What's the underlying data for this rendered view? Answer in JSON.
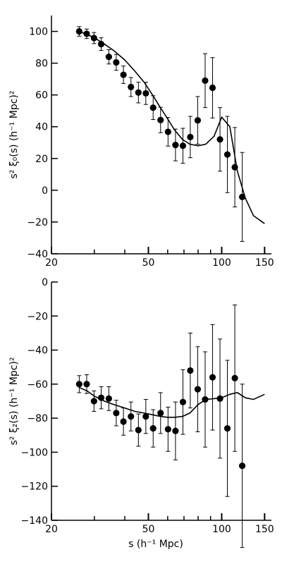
{
  "chart_data": [
    {
      "type": "scatter",
      "title": "",
      "xlabel": "",
      "ylabel": "s² ξ₀(s) (h⁻¹ Mpc)²",
      "xscale": "log",
      "xlim": [
        20,
        160
      ],
      "ylim": [
        -40,
        110
      ],
      "xticks": [
        20,
        50,
        100,
        150
      ],
      "xminorticks": [
        30,
        40,
        60,
        70,
        80,
        90
      ],
      "yticks": [
        -40,
        -20,
        0,
        20,
        40,
        60,
        80,
        100
      ],
      "grid": false,
      "series": [
        {
          "kind": "points-with-errorbars",
          "x": [
            26,
            27.9,
            29.9,
            32,
            34.4,
            36.9,
            39.5,
            42.4,
            45.5,
            48.8,
            52.3,
            56.1,
            60.2,
            64.6,
            69.3,
            74.3,
            79.7,
            85.5,
            91.7,
            98.4,
            105.5,
            113.2,
            121.4,
            130.2,
            139.7,
            150
          ],
          "y": [
            100,
            98.5,
            95.8,
            92,
            84,
            80.5,
            72.7,
            65,
            61.5,
            61,
            52,
            44.2,
            36.8,
            28.5,
            28,
            33.5,
            44,
            69,
            64.5,
            32,
            22.5,
            14.5,
            -4.2,
            null,
            null,
            null
          ],
          "yerr": [
            3,
            3,
            3.5,
            4,
            4.5,
            5,
            5.5,
            6,
            6.5,
            7,
            7.5,
            8,
            9,
            10,
            11,
            13,
            15,
            17,
            19,
            20,
            24,
            25,
            28,
            0,
            0,
            0
          ]
        },
        {
          "kind": "line",
          "x": [
            26,
            28,
            30,
            33,
            36,
            40,
            44,
            48,
            52,
            56,
            60,
            64,
            69,
            74,
            80,
            86,
            93,
            100,
            108,
            116,
            125,
            135,
            150
          ],
          "y": [
            100,
            98,
            96,
            92,
            88,
            82,
            75,
            68,
            60,
            52,
            45,
            38,
            32,
            29,
            28,
            29,
            34,
            46,
            40,
            12,
            -5,
            -16,
            -21
          ]
        }
      ]
    },
    {
      "type": "scatter",
      "title": "",
      "xlabel": "s (h⁻¹ Mpc)",
      "ylabel": "s² ξ₂(s) (h⁻¹ Mpc)²",
      "xscale": "log",
      "xlim": [
        20,
        160
      ],
      "ylim": [
        -140,
        0
      ],
      "xticks": [
        20,
        50,
        100,
        150
      ],
      "xminorticks": [
        30,
        40,
        60,
        70,
        80,
        90
      ],
      "yticks": [
        -140,
        -120,
        -100,
        -80,
        -60,
        -40,
        -20,
        0
      ],
      "grid": false,
      "series": [
        {
          "kind": "points-with-errorbars",
          "x": [
            26,
            27.9,
            29.9,
            32,
            34.4,
            36.9,
            39.5,
            42.4,
            45.5,
            48.8,
            52.3,
            56.1,
            60.2,
            64.6,
            69.3,
            74.3,
            79.7,
            85.5,
            91.7,
            98.4,
            105.5,
            113.2,
            121.4,
            130.2,
            139.7,
            150
          ],
          "y": [
            -60,
            -60,
            -70,
            -68,
            -68.5,
            -77,
            -82,
            -79,
            -87,
            -79,
            -86,
            -77,
            -86.5,
            -87.5,
            -70.5,
            -52,
            -63,
            -69,
            -56,
            -68.5,
            -86,
            -56.5,
            -108,
            null,
            null,
            null
          ],
          "yerr": [
            5,
            5.5,
            6,
            6.5,
            7,
            7.5,
            8,
            8.5,
            9.5,
            10,
            11,
            12,
            13,
            17,
            19,
            22,
            25,
            28,
            31,
            35,
            40,
            43,
            48,
            0,
            0,
            0
          ]
        },
        {
          "kind": "line",
          "x": [
            26,
            28,
            30,
            33,
            36,
            40,
            44,
            48,
            52,
            56,
            60,
            64,
            69,
            74,
            80,
            86,
            93,
            100,
            108,
            116,
            125,
            135,
            150
          ],
          "y": [
            -62,
            -64,
            -67,
            -70,
            -72,
            -74,
            -76,
            -77,
            -78,
            -79,
            -79.5,
            -79.5,
            -79,
            -77,
            -72,
            -69,
            -68.5,
            -68,
            -66,
            -65,
            -68,
            -69,
            -66
          ]
        }
      ]
    }
  ]
}
